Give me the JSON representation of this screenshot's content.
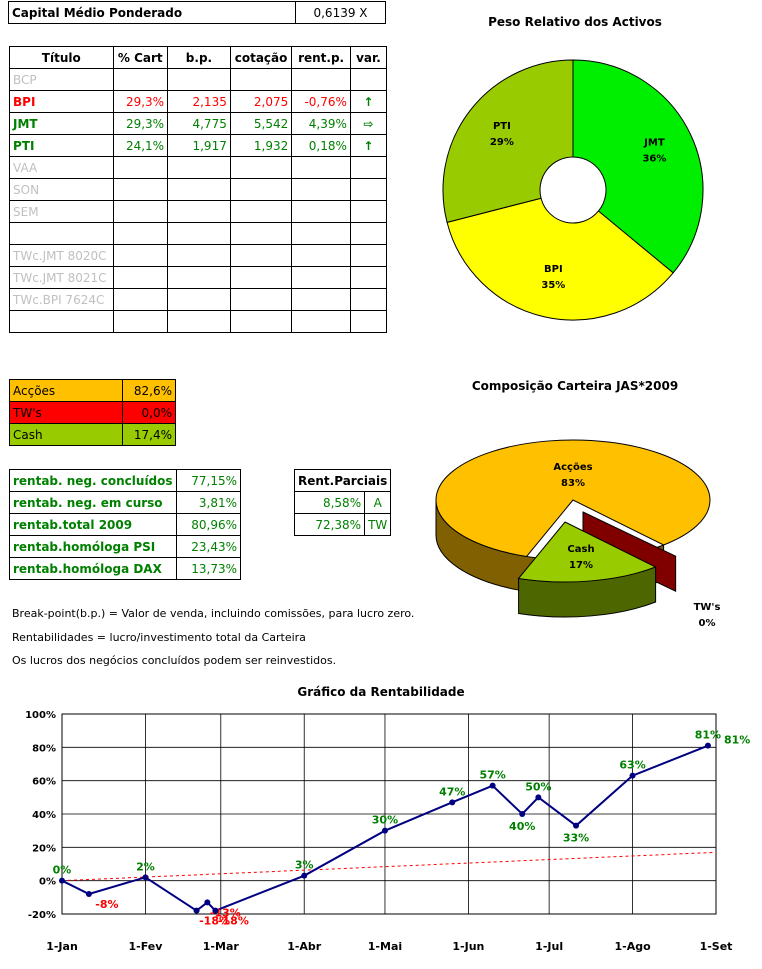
{
  "capital": {
    "label": "Capital Médio Ponderado",
    "value": "0,6139 X"
  },
  "portfolio_table": {
    "headers": [
      "Título",
      "% Cart",
      "b.p.",
      "cotação",
      "rent.p.",
      "var."
    ],
    "rows": [
      {
        "title": "BCP",
        "cart": "",
        "bp": "",
        "quote": "",
        "rent": "",
        "var": "",
        "style": "gray"
      },
      {
        "title": "BPI",
        "cart": "29,3%",
        "bp": "2,135",
        "quote": "2,075",
        "rent": "-0,76%",
        "var": "↑",
        "style": "red"
      },
      {
        "title": "JMT",
        "cart": "29,3%",
        "bp": "4,775",
        "quote": "5,542",
        "rent": "4,39%",
        "var": "⇨",
        "style": "green"
      },
      {
        "title": "PTI",
        "cart": "24,1%",
        "bp": "1,917",
        "quote": "1,932",
        "rent": "0,18%",
        "var": "↑",
        "style": "green"
      },
      {
        "title": "VAA",
        "cart": "",
        "bp": "",
        "quote": "",
        "rent": "",
        "var": "",
        "style": "gray"
      },
      {
        "title": "SON",
        "cart": "",
        "bp": "",
        "quote": "",
        "rent": "",
        "var": "",
        "style": "gray"
      },
      {
        "title": "SEM",
        "cart": "",
        "bp": "",
        "quote": "",
        "rent": "",
        "var": "",
        "style": "gray"
      },
      {
        "title": "",
        "cart": "",
        "bp": "",
        "quote": "",
        "rent": "",
        "var": "",
        "style": "gray"
      },
      {
        "title": "TWc.JMT 8020C",
        "cart": "",
        "bp": "",
        "quote": "",
        "rent": "",
        "var": "",
        "style": "gray"
      },
      {
        "title": "TWc.JMT 8021C",
        "cart": "",
        "bp": "",
        "quote": "",
        "rent": "",
        "var": "",
        "style": "gray"
      },
      {
        "title": "TWc.BPI 7624C",
        "cart": "",
        "bp": "",
        "quote": "",
        "rent": "",
        "var": "",
        "style": "gray"
      },
      {
        "title": "",
        "cart": "",
        "bp": "",
        "quote": "",
        "rent": "",
        "var": "",
        "style": "gray"
      }
    ]
  },
  "composition": [
    {
      "label": "Acções",
      "value": "82,6%",
      "bg": "#ffc000"
    },
    {
      "label": "TW's",
      "value": "0,0%",
      "bg": "#ff0000"
    },
    {
      "label": "Cash",
      "value": "17,4%",
      "bg": "#99cc00"
    }
  ],
  "rentab": [
    {
      "label": "rentab. neg. concluídos",
      "value": "77,15%"
    },
    {
      "label": "rentab. neg. em curso",
      "value": "3,81%"
    },
    {
      "label": "rentab.total 2009",
      "value": "80,96%"
    },
    {
      "label": "rentab.homóloga PSI",
      "value": "23,43%"
    },
    {
      "label": "rentab.homóloga DAX",
      "value": "13,73%"
    }
  ],
  "partials": {
    "header": "Rent.Parciais",
    "rows": [
      {
        "value": "8,58%",
        "tag": "A"
      },
      {
        "value": "72,38%",
        "tag": "TW"
      }
    ]
  },
  "notes": [
    "Break-point(b.p.) = Valor de venda, incluindo comissões, para lucro zero.",
    "Rentabilidades = lucro/investimento total da Carteira",
    "Os lucros dos negócios concluídos podem ser reinvestidos."
  ],
  "chart_data": [
    {
      "type": "pie",
      "style": "doughnut",
      "title": "Peso Relativo dos Activos",
      "slices": [
        {
          "label": "JMT",
          "value": 36,
          "text": "36%",
          "color": "#00ee00"
        },
        {
          "label": "BPI",
          "value": 35,
          "text": "35%",
          "color": "#ffff00"
        },
        {
          "label": "PTI",
          "value": 29,
          "text": "29%",
          "color": "#99cc00"
        }
      ]
    },
    {
      "type": "pie",
      "style": "3d-exploded",
      "title": "Composição Carteira JAS*2009",
      "slices": [
        {
          "label": "Acções",
          "value": 83,
          "text": "83%",
          "color": "#ffc000"
        },
        {
          "label": "Cash",
          "value": 17,
          "text": "17%",
          "color": "#99cc00"
        },
        {
          "label": "TW's",
          "value": 0,
          "text": "0%",
          "color": "#ff0000"
        }
      ]
    },
    {
      "type": "line",
      "title": "Gráfico da Rentabilidade",
      "x_ticks": [
        "1-Jan",
        "1-Fev",
        "1-Mar",
        "1-Abr",
        "1-Mai",
        "1-Jun",
        "1-Jul",
        "1-Ago",
        "1-Set"
      ],
      "y_ticks": [
        "-20%",
        "0%",
        "20%",
        "40%",
        "60%",
        "80%",
        "100%"
      ],
      "ylim": [
        -20,
        100
      ],
      "grid": true,
      "series": [
        {
          "color": "#000080",
          "points": [
            {
              "x": "1-Jan",
              "y": 0,
              "label": "0%"
            },
            {
              "x": "11-Jan",
              "y": -8,
              "label": "-8%"
            },
            {
              "x": "1-Fev",
              "y": 2,
              "label": "2%"
            },
            {
              "x": "20-Fev",
              "y": -18,
              "label": "-18%"
            },
            {
              "x": "24-Fev",
              "y": -13,
              "label": "-13%"
            },
            {
              "x": "27-Fev",
              "y": -18,
              "label": "-18%"
            },
            {
              "x": "1-Abr",
              "y": 3,
              "label": "3%"
            },
            {
              "x": "1-Mai",
              "y": 30,
              "label": "30%"
            },
            {
              "x": "26-Mai",
              "y": 47,
              "label": "47%"
            },
            {
              "x": "10-Jun",
              "y": 57,
              "label": "57%"
            },
            {
              "x": "21-Jun",
              "y": 40,
              "label": "40%"
            },
            {
              "x": "27-Jun",
              "y": 50,
              "label": "50%"
            },
            {
              "x": "11-Jul",
              "y": 33,
              "label": "33%"
            },
            {
              "x": "1-Ago",
              "y": 63,
              "label": "63%"
            },
            {
              "x": "29-Ago",
              "y": 81,
              "label": "81%"
            }
          ]
        },
        {
          "color": "#ff0000",
          "style": "dashed",
          "points": [
            {
              "x": "1-Jan",
              "y": 0
            },
            {
              "x": "1-Set",
              "y": 17
            }
          ]
        }
      ],
      "end_label": "81%"
    }
  ]
}
